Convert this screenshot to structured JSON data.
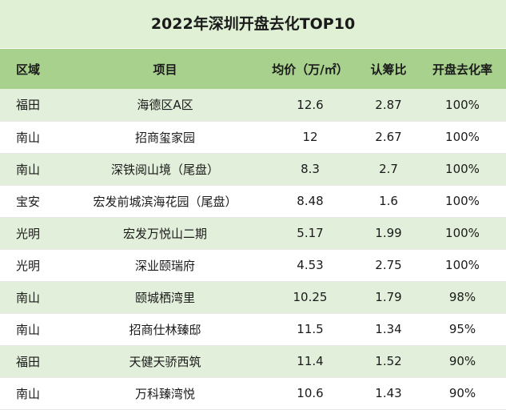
{
  "title": "2022年深圳开盘去化TOP10",
  "colors": {
    "header_bg": "#a9d18e",
    "title_bg": "#dff0d4",
    "stripe_bg": "#e2efda"
  },
  "chart_data": {
    "type": "table",
    "title": "2022年深圳开盘去化TOP10",
    "columns": [
      "区域",
      "项目",
      "均价（万/㎡）",
      "认筹比",
      "开盘去化率"
    ],
    "rows": [
      [
        "福田",
        "海德区A区",
        "12.6",
        "2.87",
        "100%"
      ],
      [
        "南山",
        "招商玺家园",
        "12",
        "2.67",
        "100%"
      ],
      [
        "南山",
        "深铁阅山境（尾盘）",
        "8.3",
        "2.7",
        "100%"
      ],
      [
        "宝安",
        "宏发前城滨海花园（尾盘）",
        "8.48",
        "1.6",
        "100%"
      ],
      [
        "光明",
        "宏发万悦山二期",
        "5.17",
        "1.99",
        "100%"
      ],
      [
        "光明",
        "深业颐瑞府",
        "4.53",
        "2.75",
        "100%"
      ],
      [
        "南山",
        "颐城栖湾里",
        "10.25",
        "1.79",
        "98%"
      ],
      [
        "南山",
        "招商仕林臻邸",
        "11.5",
        "1.34",
        "95%"
      ],
      [
        "福田",
        "天健天骄西筑",
        "11.4",
        "1.52",
        "90%"
      ],
      [
        "南山",
        "万科臻湾悦",
        "10.6",
        "1.43",
        "90%"
      ]
    ]
  }
}
